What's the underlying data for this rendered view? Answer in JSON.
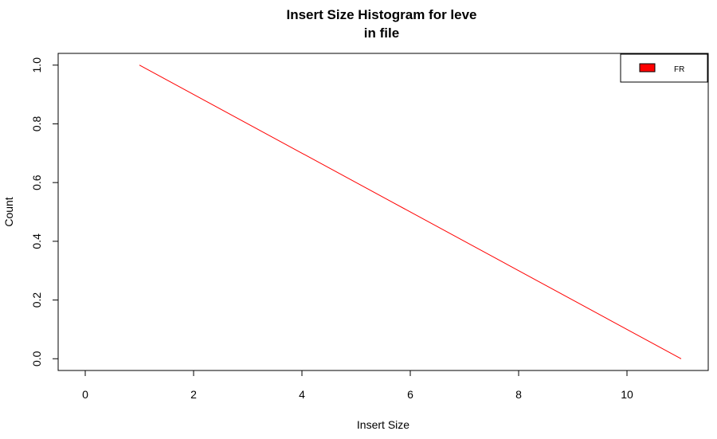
{
  "chart_data": {
    "type": "line",
    "title_line1": "Insert Size Histogram for leve",
    "title_line2": "in file",
    "xlabel": "Insert Size",
    "ylabel": "Count",
    "xlim": [
      -0.5,
      11.5
    ],
    "ylim": [
      -0.04,
      1.04
    ],
    "x_ticks": [
      0,
      2,
      4,
      6,
      8,
      10
    ],
    "y_ticks": [
      0.0,
      0.2,
      0.4,
      0.6,
      0.8,
      1.0
    ],
    "x_tick_labels": [
      "0",
      "2",
      "4",
      "6",
      "8",
      "10"
    ],
    "y_tick_labels": [
      "0.0",
      "0.2",
      "0.4",
      "0.6",
      "0.8",
      "1.0"
    ],
    "legend_placement": "top-right",
    "series": [
      {
        "name": "FR",
        "color": "#ff0000",
        "x": [
          1,
          11
        ],
        "y": [
          1.0,
          0.0
        ]
      }
    ]
  }
}
